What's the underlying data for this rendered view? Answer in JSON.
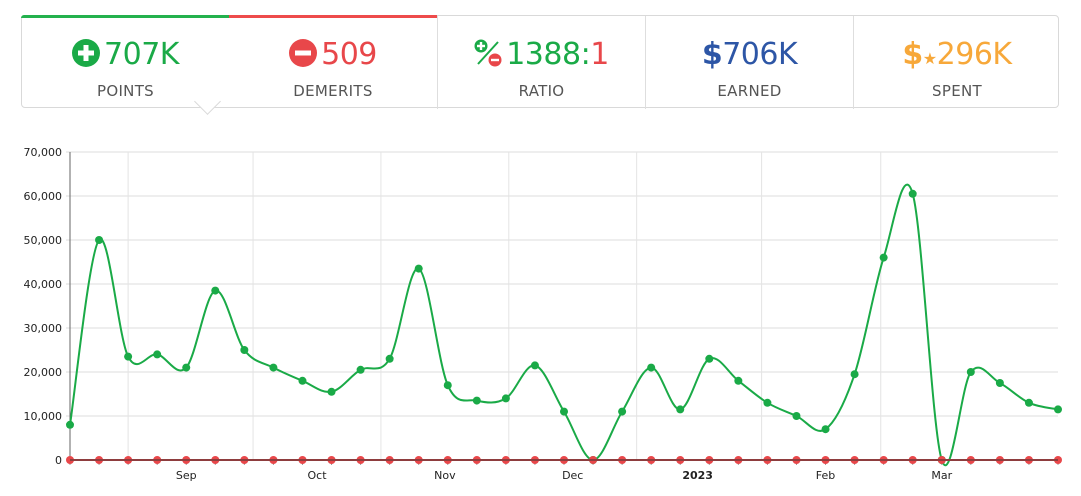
{
  "stats": {
    "points": {
      "value": "707K",
      "label": "POINTS",
      "color": "#1aaa47",
      "icon": "plus-circle-icon"
    },
    "demerits": {
      "value": "509",
      "label": "DEMERITS",
      "color": "#e8474a",
      "icon": "minus-circle-icon"
    },
    "ratio": {
      "left": "1388",
      "sep": ":",
      "right": "1",
      "label": "RATIO",
      "icon": "plus-minus-ratio-icon"
    },
    "earned": {
      "symbol": "$",
      "value": "706K",
      "label": "EARNED",
      "color": "#2d56a6",
      "icon": "dollar-icon"
    },
    "spent": {
      "symbol": "$",
      "star": "★",
      "value": "296K",
      "label": "SPENT",
      "color": "#f7a83a",
      "icon": "dollar-star-icon"
    }
  },
  "chart_data": {
    "type": "line",
    "y_ticks": [
      "0",
      "10,000",
      "20,000",
      "30,000",
      "40,000",
      "50,000",
      "60,000",
      "70,000"
    ],
    "ylim": [
      0,
      70000
    ],
    "x_labels": [
      "Sep",
      "Oct",
      "Nov",
      "Dec",
      "2023",
      "Feb",
      "Mar"
    ],
    "series": [
      {
        "color": "#1aaa47",
        "values": [
          8000,
          50000,
          23500,
          24000,
          21000,
          38500,
          25000,
          21000,
          18000,
          15500,
          20500,
          23000,
          43500,
          17000,
          13500,
          14000,
          21500,
          11000,
          0,
          11000,
          21000,
          11500,
          23000,
          18000,
          13000,
          10000,
          7000,
          19500,
          46000,
          60500,
          0,
          20000,
          17500,
          13000,
          11500
        ]
      },
      {
        "color": "#e8474a",
        "values": [
          0,
          0,
          0,
          0,
          0,
          0,
          0,
          0,
          0,
          0,
          0,
          0,
          0,
          0,
          0,
          0,
          0,
          0,
          0,
          0,
          0,
          0,
          0,
          0,
          0,
          0,
          0,
          0,
          0,
          0,
          0,
          0,
          0,
          0,
          0
        ]
      }
    ]
  }
}
